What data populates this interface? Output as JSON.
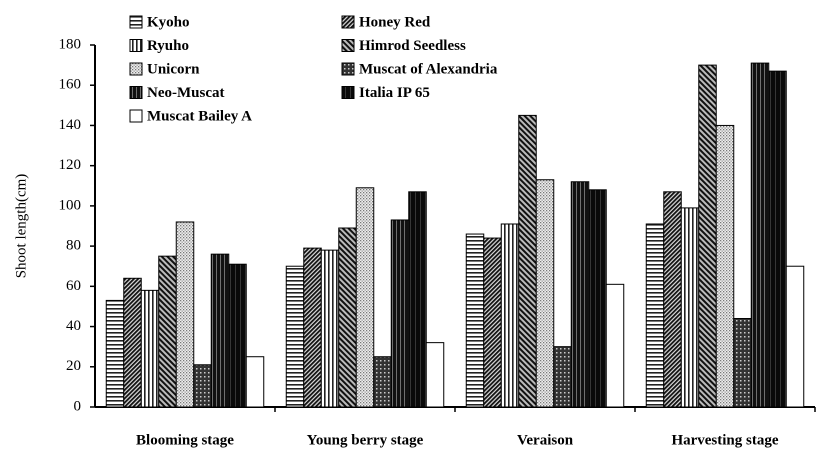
{
  "chart_data": {
    "type": "bar",
    "y_label": "Shoot length(cm)",
    "categories": [
      "Blooming stage",
      "Young berry stage",
      "Veraison",
      "Harvesting stage"
    ],
    "series": [
      {
        "name": "Kyoho",
        "values": [
          53,
          70,
          86,
          91
        ]
      },
      {
        "name": "Honey Red",
        "values": [
          64,
          79,
          84,
          107
        ]
      },
      {
        "name": "Ryuho",
        "values": [
          58,
          78,
          91,
          99
        ]
      },
      {
        "name": "Himrod Seedless",
        "values": [
          75,
          89,
          145,
          170
        ]
      },
      {
        "name": "Unicorn",
        "values": [
          92,
          109,
          113,
          140
        ]
      },
      {
        "name": "Muscat of Alexandria",
        "values": [
          21,
          25,
          30,
          44
        ]
      },
      {
        "name": "Neo-Muscat",
        "values": [
          76,
          93,
          112,
          171
        ]
      },
      {
        "name": "Italia IP 65",
        "values": [
          71,
          107,
          108,
          167
        ]
      },
      {
        "name": "Muscat Bailey A",
        "values": [
          25,
          32,
          61,
          70
        ]
      }
    ],
    "ylim": [
      0,
      180
    ],
    "yticks": [
      0,
      20,
      40,
      60,
      80,
      100,
      120,
      140,
      160,
      180
    ]
  }
}
